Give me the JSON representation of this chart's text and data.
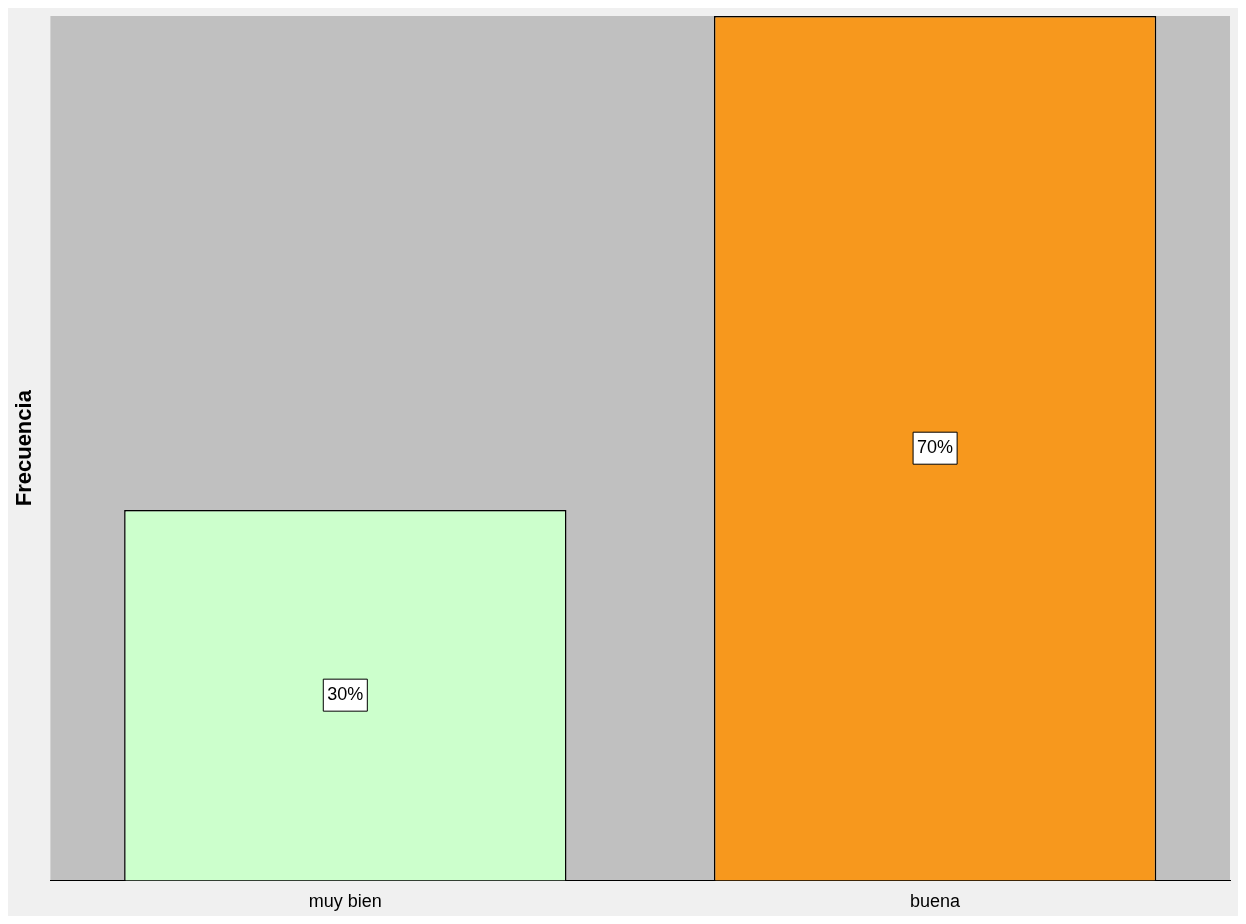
{
  "chart_data": {
    "type": "bar",
    "ylabel": "Frecuencia",
    "categories": [
      "muy bien",
      "buena"
    ],
    "values": [
      30,
      70
    ],
    "colors": [
      "#ccffcc",
      "#f7981d"
    ],
    "value_labels": [
      "30%",
      "70%"
    ],
    "grid": false,
    "legend": false
  }
}
